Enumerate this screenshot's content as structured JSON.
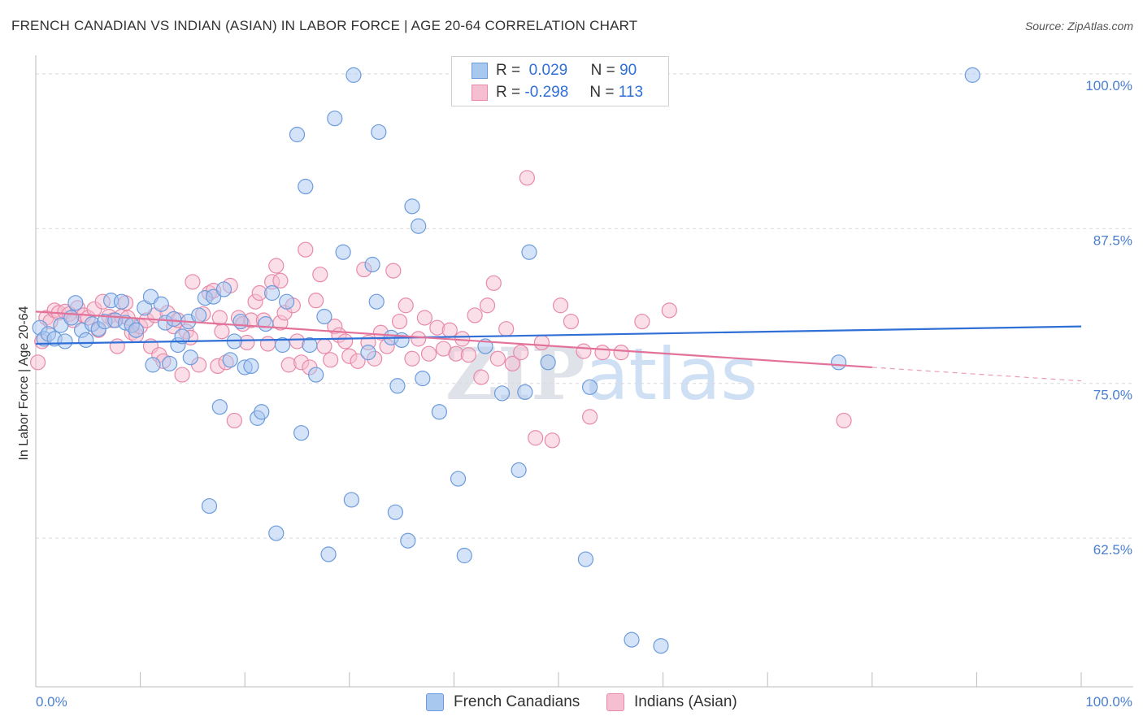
{
  "title": "FRENCH CANADIAN VS INDIAN (ASIAN) IN LABOR FORCE | AGE 20-64 CORRELATION CHART",
  "source": "Source: ZipAtlas.com",
  "watermark": {
    "part1": "ZIP",
    "part2": "atlas"
  },
  "legend": {
    "series1": {
      "r_label": "R =",
      "r_value": "0.029",
      "n_label": "N =",
      "n_value": "90"
    },
    "series2": {
      "r_label": "R =",
      "r_value": "-0.298",
      "n_label": "N =",
      "n_value": "113"
    }
  },
  "bottom_legend": {
    "series1": "French Canadians",
    "series2": "Indians (Asian)"
  },
  "colors": {
    "blue_fill": "#a9c8f0",
    "blue_stroke": "#6c9bdc",
    "blue_line": "#2f6fd6",
    "pink_fill": "#f6bfd1",
    "pink_stroke": "#e88aa9",
    "pink_line": "#e3729a",
    "tick_text": "#4a7fd0",
    "grid": "#d9d9d9"
  },
  "chart_data": {
    "type": "scatter",
    "title": "FRENCH CANADIAN VS INDIAN (ASIAN) IN LABOR FORCE | AGE 20-64 CORRELATION CHART",
    "xlabel": "",
    "ylabel": "In Labor Force | Age 20-64",
    "xlim": [
      0,
      100
    ],
    "ylim": [
      50.5,
      101.5
    ],
    "x_tick_labels": [
      {
        "value": 0,
        "label": "0.0%"
      },
      {
        "value": 100,
        "label": "100.0%"
      }
    ],
    "y_tick_labels": [
      {
        "value": 100,
        "label": "100.0%"
      },
      {
        "value": 87.5,
        "label": "87.5%"
      },
      {
        "value": 75,
        "label": "75.0%"
      },
      {
        "value": 62.5,
        "label": "62.5%"
      }
    ],
    "series": [
      {
        "name": "French Canadians",
        "r": 0.029,
        "n": 90,
        "trend": {
          "x0": 0,
          "y0": 78.2,
          "x1": 100,
          "y1": 79.6
        },
        "points": [
          [
            0.4,
            79.5
          ],
          [
            0.8,
            78.6
          ],
          [
            1.2,
            79.0
          ],
          [
            1.8,
            78.6
          ],
          [
            2.4,
            79.7
          ],
          [
            2.8,
            78.4
          ],
          [
            3.4,
            80.3
          ],
          [
            3.8,
            81.5
          ],
          [
            4.4,
            79.3
          ],
          [
            4.8,
            78.5
          ],
          [
            5.4,
            79.8
          ],
          [
            6.0,
            79.4
          ],
          [
            6.6,
            80.0
          ],
          [
            7.2,
            81.7
          ],
          [
            7.6,
            80.1
          ],
          [
            8.2,
            81.6
          ],
          [
            8.6,
            79.9
          ],
          [
            9.2,
            79.7
          ],
          [
            9.6,
            79.3
          ],
          [
            10.4,
            81.1
          ],
          [
            11.0,
            82.0
          ],
          [
            11.2,
            76.5
          ],
          [
            12.0,
            81.4
          ],
          [
            12.4,
            79.9
          ],
          [
            12.8,
            76.6
          ],
          [
            13.2,
            80.2
          ],
          [
            13.6,
            78.1
          ],
          [
            14.0,
            78.8
          ],
          [
            14.6,
            80.0
          ],
          [
            14.8,
            77.1
          ],
          [
            15.6,
            80.5
          ],
          [
            16.2,
            81.9
          ],
          [
            16.6,
            65.1
          ],
          [
            17.0,
            82.0
          ],
          [
            17.6,
            73.1
          ],
          [
            18.0,
            82.6
          ],
          [
            18.6,
            76.9
          ],
          [
            19.0,
            78.4
          ],
          [
            19.6,
            80.0
          ],
          [
            20.0,
            76.3
          ],
          [
            20.6,
            76.4
          ],
          [
            21.2,
            72.2
          ],
          [
            21.6,
            72.7
          ],
          [
            22.0,
            79.8
          ],
          [
            22.6,
            82.3
          ],
          [
            23.0,
            62.9
          ],
          [
            23.6,
            78.1
          ],
          [
            24.0,
            81.6
          ],
          [
            25.0,
            95.1
          ],
          [
            25.4,
            71.0
          ],
          [
            25.8,
            90.9
          ],
          [
            26.2,
            78.1
          ],
          [
            26.8,
            75.7
          ],
          [
            27.6,
            80.4
          ],
          [
            28.0,
            61.2
          ],
          [
            28.6,
            96.4
          ],
          [
            29.4,
            85.6
          ],
          [
            30.2,
            65.6
          ],
          [
            30.4,
            99.9
          ],
          [
            31.8,
            77.5
          ],
          [
            32.2,
            84.6
          ],
          [
            32.6,
            81.6
          ],
          [
            32.8,
            95.3
          ],
          [
            34.0,
            78.7
          ],
          [
            34.4,
            64.6
          ],
          [
            34.6,
            74.8
          ],
          [
            35.0,
            78.5
          ],
          [
            35.6,
            62.3
          ],
          [
            36.0,
            89.3
          ],
          [
            36.6,
            87.7
          ],
          [
            37.0,
            75.4
          ],
          [
            38.6,
            72.7
          ],
          [
            40.4,
            67.3
          ],
          [
            41.0,
            61.1
          ],
          [
            43.0,
            78.0
          ],
          [
            44.6,
            74.2
          ],
          [
            45.6,
            100.1
          ],
          [
            46.2,
            68.0
          ],
          [
            46.8,
            74.3
          ],
          [
            47.2,
            85.6
          ],
          [
            49.0,
            76.7
          ],
          [
            52.6,
            60.8
          ],
          [
            53.0,
            74.7
          ],
          [
            57.0,
            54.3
          ],
          [
            59.0,
            100.0
          ],
          [
            59.8,
            53.8
          ],
          [
            76.8,
            76.7
          ],
          [
            89.6,
            99.9
          ],
          [
            50.8,
            99.9
          ],
          [
            48.6,
            99.8
          ]
        ]
      },
      {
        "name": "Indians (Asian)",
        "r": -0.298,
        "n": 113,
        "trend": {
          "x0": 0,
          "y0": 80.8,
          "x1": 80,
          "y1": 76.3,
          "dashed_to_x": 100,
          "dashed_to_y": 75.2
        },
        "points": [
          [
            0.2,
            76.7
          ],
          [
            0.6,
            78.4
          ],
          [
            1.0,
            80.3
          ],
          [
            1.4,
            80.0
          ],
          [
            1.8,
            80.9
          ],
          [
            2.2,
            80.7
          ],
          [
            2.8,
            80.8
          ],
          [
            3.2,
            80.6
          ],
          [
            3.6,
            80.1
          ],
          [
            4.0,
            81.1
          ],
          [
            4.6,
            80.5
          ],
          [
            5.0,
            80.3
          ],
          [
            5.6,
            81.0
          ],
          [
            6.0,
            79.3
          ],
          [
            6.4,
            81.6
          ],
          [
            7.0,
            80.4
          ],
          [
            7.4,
            80.1
          ],
          [
            7.8,
            78.0
          ],
          [
            8.2,
            80.4
          ],
          [
            8.8,
            80.3
          ],
          [
            9.2,
            79.1
          ],
          [
            9.6,
            78.9
          ],
          [
            10.0,
            79.6
          ],
          [
            10.6,
            80.1
          ],
          [
            11.0,
            78.0
          ],
          [
            11.4,
            80.5
          ],
          [
            11.8,
            77.3
          ],
          [
            12.2,
            76.8
          ],
          [
            12.6,
            80.7
          ],
          [
            13.2,
            79.6
          ],
          [
            13.6,
            80.1
          ],
          [
            14.0,
            75.7
          ],
          [
            14.4,
            79.2
          ],
          [
            14.8,
            78.7
          ],
          [
            15.0,
            83.2
          ],
          [
            15.6,
            76.5
          ],
          [
            16.0,
            80.6
          ],
          [
            16.6,
            82.3
          ],
          [
            17.0,
            82.5
          ],
          [
            17.4,
            76.4
          ],
          [
            17.8,
            79.2
          ],
          [
            18.2,
            76.7
          ],
          [
            18.6,
            82.9
          ],
          [
            19.0,
            72.0
          ],
          [
            19.4,
            80.3
          ],
          [
            19.8,
            79.8
          ],
          [
            20.2,
            78.3
          ],
          [
            20.6,
            80.1
          ],
          [
            21.0,
            81.6
          ],
          [
            21.4,
            82.3
          ],
          [
            21.8,
            80.1
          ],
          [
            22.2,
            78.2
          ],
          [
            22.6,
            83.2
          ],
          [
            23.0,
            84.5
          ],
          [
            23.4,
            79.9
          ],
          [
            23.8,
            80.7
          ],
          [
            24.2,
            76.5
          ],
          [
            24.6,
            81.3
          ],
          [
            25.0,
            78.4
          ],
          [
            25.4,
            76.7
          ],
          [
            25.8,
            85.8
          ],
          [
            26.2,
            76.3
          ],
          [
            26.8,
            81.7
          ],
          [
            27.2,
            83.8
          ],
          [
            27.6,
            78.0
          ],
          [
            28.2,
            76.9
          ],
          [
            28.6,
            79.6
          ],
          [
            29.0,
            78.9
          ],
          [
            29.6,
            78.4
          ],
          [
            30.0,
            77.2
          ],
          [
            30.8,
            76.8
          ],
          [
            31.4,
            84.2
          ],
          [
            31.8,
            78.3
          ],
          [
            32.4,
            77.0
          ],
          [
            33.0,
            79.1
          ],
          [
            33.6,
            78.0
          ],
          [
            34.2,
            84.1
          ],
          [
            34.8,
            80.0
          ],
          [
            35.4,
            81.3
          ],
          [
            36.0,
            77.0
          ],
          [
            36.6,
            78.6
          ],
          [
            37.2,
            80.3
          ],
          [
            37.6,
            77.4
          ],
          [
            38.4,
            79.5
          ],
          [
            39.0,
            77.8
          ],
          [
            39.6,
            79.3
          ],
          [
            40.2,
            77.4
          ],
          [
            40.8,
            78.6
          ],
          [
            41.4,
            77.3
          ],
          [
            42.0,
            80.5
          ],
          [
            42.6,
            75.5
          ],
          [
            43.2,
            81.3
          ],
          [
            43.8,
            83.1
          ],
          [
            44.2,
            77.0
          ],
          [
            45.0,
            79.4
          ],
          [
            45.6,
            76.6
          ],
          [
            46.4,
            77.5
          ],
          [
            47.0,
            91.6
          ],
          [
            47.8,
            70.6
          ],
          [
            48.4,
            78.3
          ],
          [
            49.4,
            70.4
          ],
          [
            50.2,
            81.3
          ],
          [
            51.2,
            80.0
          ],
          [
            52.4,
            77.6
          ],
          [
            53.0,
            72.3
          ],
          [
            54.2,
            77.5
          ],
          [
            56.0,
            77.5
          ],
          [
            58.0,
            80.0
          ],
          [
            77.3,
            72.0
          ],
          [
            23.4,
            83.3
          ],
          [
            17.6,
            80.3
          ],
          [
            8.6,
            81.5
          ],
          [
            60.6,
            80.9
          ]
        ]
      }
    ]
  }
}
